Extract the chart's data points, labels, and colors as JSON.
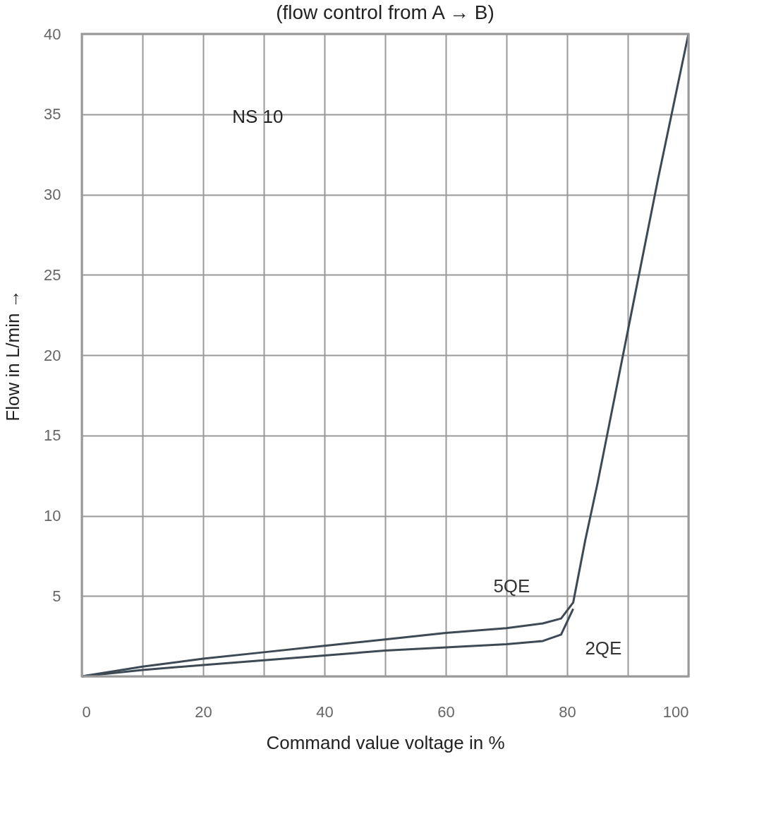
{
  "chart_data": {
    "type": "line",
    "title": "(flow control from A → B)",
    "xlabel": "Command value voltage in %",
    "ylabel": "Flow in L/min →",
    "annotations": [
      "NS 10"
    ],
    "series": [
      {
        "name": "5QE",
        "color": "#3d4a55",
        "x": [
          0,
          10,
          20,
          30,
          40,
          50,
          60,
          70,
          76,
          79,
          81,
          83,
          85,
          90,
          95,
          100
        ],
        "values": [
          0,
          0.6,
          1.1,
          1.5,
          1.9,
          2.3,
          2.7,
          3.0,
          3.3,
          3.6,
          4.6,
          8.5,
          12,
          21.5,
          31,
          40
        ]
      },
      {
        "name": "2QE",
        "color": "#3d4a55",
        "x": [
          0,
          10,
          20,
          30,
          40,
          50,
          60,
          70,
          76,
          79,
          81
        ],
        "values": [
          0,
          0.4,
          0.7,
          1.0,
          1.3,
          1.6,
          1.8,
          2.0,
          2.2,
          2.6,
          4.2
        ]
      }
    ],
    "xlim": [
      0,
      100
    ],
    "ylim": [
      0,
      40
    ],
    "xticks": [
      0,
      {
        "value": 10,
        "label": null
      },
      20,
      {
        "value": 30,
        "label": null
      },
      40,
      {
        "value": 50,
        "label": null
      },
      60,
      {
        "value": 70,
        "label": null
      },
      80,
      {
        "value": 90,
        "label": null
      },
      100
    ],
    "yticks": [
      {
        "value": 0,
        "label": null
      },
      5,
      10,
      15,
      20,
      25,
      30,
      35,
      40
    ],
    "grid": true,
    "legend": false,
    "marker": "none",
    "line_style": "solid"
  }
}
